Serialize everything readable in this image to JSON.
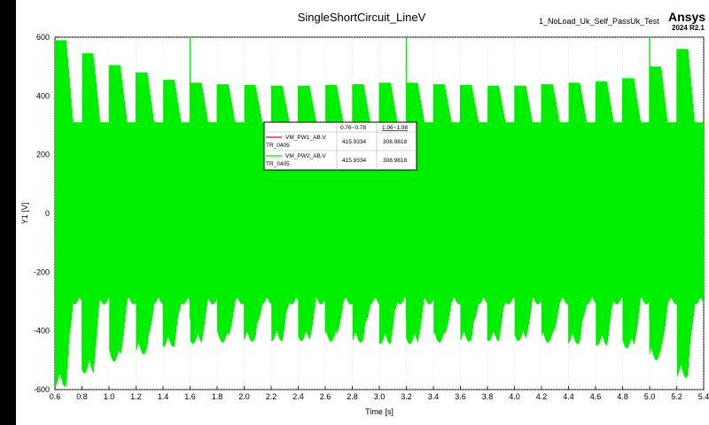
{
  "chart_data": {
    "type": "line",
    "title": "SingleShortCircuit_LineV",
    "design_name": "1_NoLoad_Uk_Self_PassUk_Test",
    "brand": "Ansys",
    "version": "2024 R2.1",
    "xlabel": "Time [s]",
    "ylabel": "Y1 [V]",
    "xlim": [
      0.6,
      5.4
    ],
    "ylim": [
      -600,
      600
    ],
    "x_ticks": [
      "0.6",
      "0.8",
      "1.0",
      "1.2",
      "1.4",
      "1.6",
      "1.8",
      "2.0",
      "2.2",
      "2.4",
      "2.6",
      "2.8",
      "3.0",
      "3.2",
      "3.4",
      "3.6",
      "3.8",
      "4.0",
      "4.2",
      "4.4",
      "4.6",
      "4.8",
      "5.0",
      "5.2",
      "5.4"
    ],
    "y_ticks": [
      "600",
      "400",
      "200",
      "0",
      "-200",
      "-400",
      "-600"
    ],
    "grid": true,
    "series": [
      {
        "name": "VM_PW1_AB.V",
        "color": "#e0004d"
      },
      {
        "name": "VM_PW2_AB.V",
        "color": "#00ee00"
      }
    ],
    "envelope": {
      "period_s": 0.2,
      "first_pulse_s": 0.6,
      "pulse_peak_times_s": [
        0.6,
        0.8,
        1.0,
        1.2,
        1.4,
        1.6,
        1.8,
        2.0,
        2.2,
        2.4,
        2.6,
        2.8,
        3.0,
        3.2,
        3.4,
        3.6,
        3.8,
        4.0,
        4.2,
        4.4,
        4.6,
        4.8,
        5.0,
        5.2
      ],
      "pulse_peaks_v": [
        590,
        545,
        505,
        480,
        455,
        445,
        440,
        437,
        435,
        435,
        437,
        440,
        445,
        445,
        440,
        437,
        435,
        435,
        440,
        445,
        450,
        460,
        500,
        560
      ],
      "spike_times_s": [
        1.6,
        3.2,
        5.0
      ],
      "spike_value_v": 600,
      "steady_amplitude_v": 310
    },
    "legend": {
      "title": "TR_0405",
      "col1_header": "0.76~0.78",
      "col2_header": "1.96~1.98",
      "rows": [
        {
          "name": "VM_PW1_AB.V",
          "sub": "TR_0405",
          "v1": "415.9334",
          "v2": "308.9818"
        },
        {
          "name": "VM_PW2_AB.V",
          "sub": "TR_0405",
          "v1": "415.9334",
          "v2": "308.9818"
        }
      ]
    }
  }
}
